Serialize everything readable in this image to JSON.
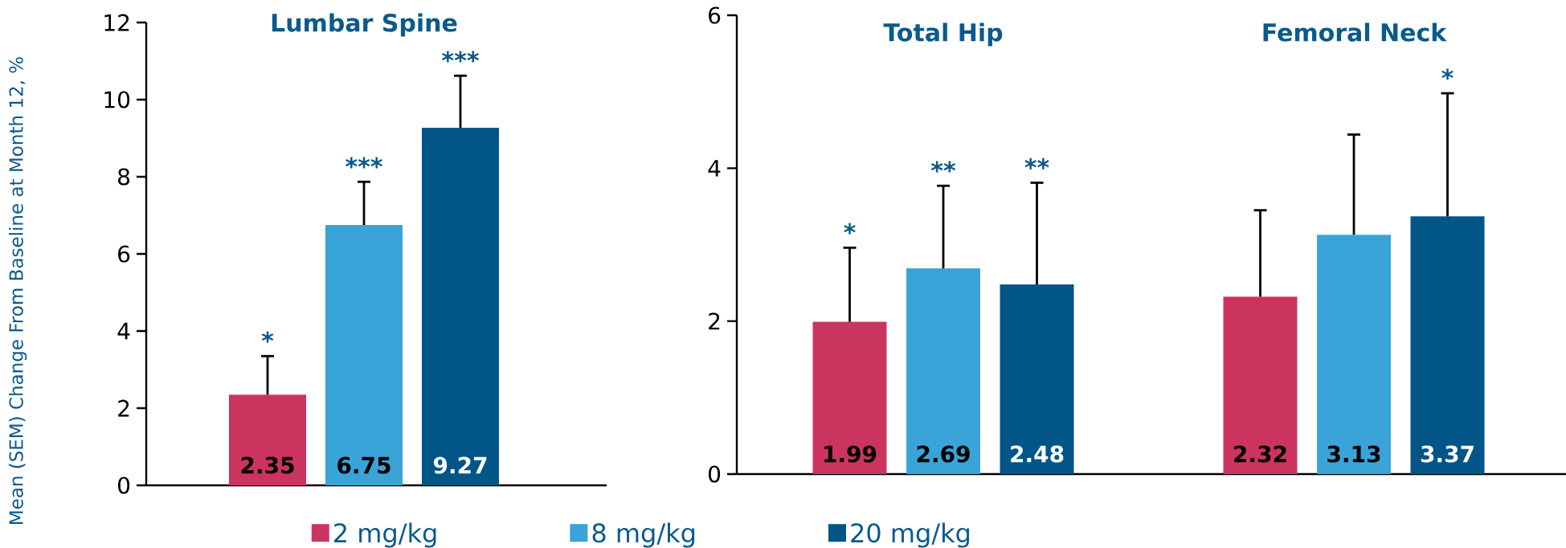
{
  "chart_data": [
    {
      "type": "bar",
      "title": "Lumbar Spine",
      "categories": [
        null,
        null,
        null
      ],
      "ylabel": "Mean (SEM) Change From Baseline at Month 12, %",
      "ylim": [
        0,
        12
      ],
      "yticks": [
        0,
        2,
        4,
        6,
        8,
        10,
        12
      ],
      "data_labels": true,
      "values": [
        2.35,
        6.75,
        9.27
      ],
      "colors": [
        "#cc3460",
        "#3aa3d7",
        "#015587"
      ],
      "errors": [
        [
          2.35,
          3.35
        ],
        [
          6.75,
          7.87
        ],
        [
          9.27,
          10.62
        ]
      ],
      "annotations": [
        "*",
        "***",
        "***"
      ]
    },
    {
      "type": "bar",
      "categories": [
        "Total Hip",
        "Femoral Neck"
      ],
      "ylim": [
        0,
        6
      ],
      "yticks": [
        0,
        2,
        4,
        6
      ],
      "data_labels": true,
      "legend": "bottom",
      "series": [
        {
          "name": "2 mg/kg",
          "color": "#cc3460",
          "values": [
            1.99,
            2.32
          ],
          "errors": [
            [
              1.99,
              2.96
            ],
            [
              2.32,
              3.45
            ]
          ]
        },
        {
          "name": "8 mg/kg",
          "color": "#3aa3d7",
          "values": [
            2.69,
            3.13
          ],
          "errors": [
            [
              2.69,
              3.77
            ],
            [
              3.13,
              4.44
            ]
          ]
        },
        {
          "name": "20 mg/kg",
          "color": "#015587",
          "values": [
            2.48,
            3.37
          ],
          "errors": [
            [
              2.48,
              3.81
            ],
            [
              3.37,
              4.98
            ]
          ]
        }
      ],
      "annotations": [
        "*",
        "**",
        "**",
        "*"
      ]
    }
  ]
}
